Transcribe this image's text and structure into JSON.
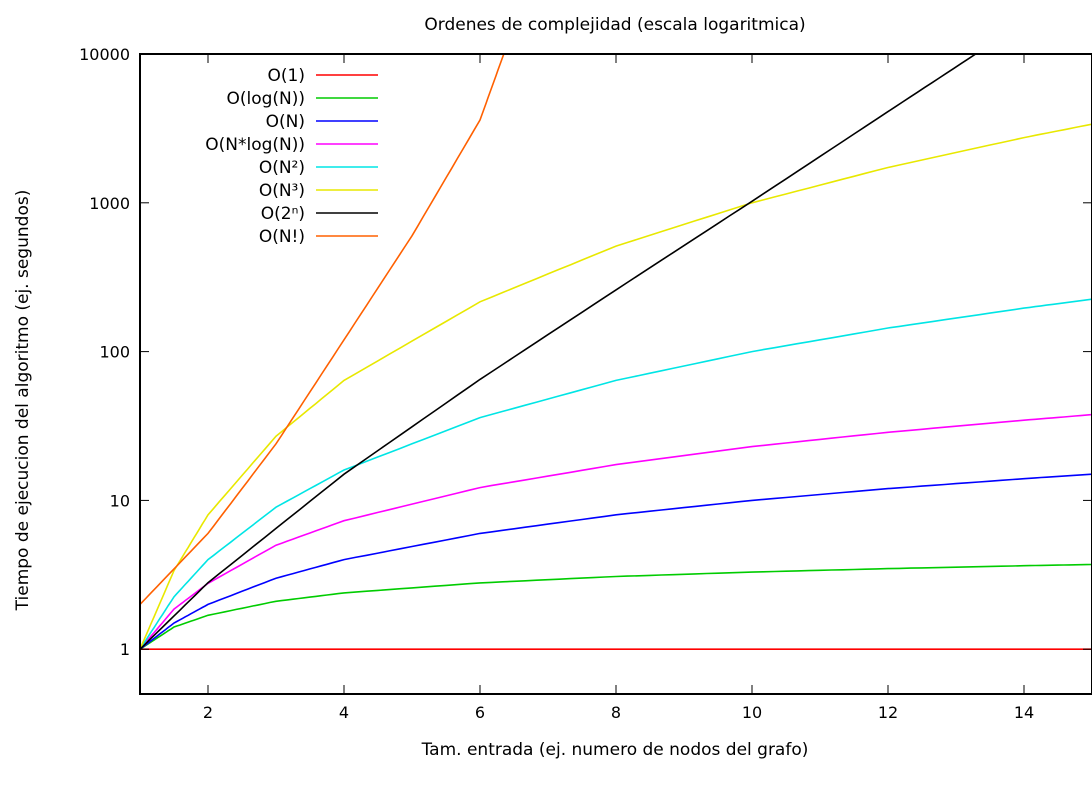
{
  "chart_data": {
    "type": "line",
    "title": "Ordenes de complejidad (escala logaritmica)",
    "xlabel": "Tam. entrada (ej. numero de nodos del grafo)",
    "ylabel": "Tiempo de ejecucion del algoritmo (ej. segundos)",
    "xlim": [
      1,
      15
    ],
    "ylim": [
      0.5,
      10000
    ],
    "yscale": "log",
    "x_ticks": [
      {
        "value": 2,
        "label": "2"
      },
      {
        "value": 4,
        "label": "4"
      },
      {
        "value": 6,
        "label": "6"
      },
      {
        "value": 8,
        "label": "8"
      },
      {
        "value": 10,
        "label": "10"
      },
      {
        "value": 12,
        "label": "12"
      },
      {
        "value": 14,
        "label": "14"
      }
    ],
    "y_ticks": [
      {
        "value": 1,
        "label": "1"
      },
      {
        "value": 10,
        "label": "10"
      },
      {
        "value": 100,
        "label": "100"
      },
      {
        "value": 1000,
        "label": "1000"
      },
      {
        "value": 10000,
        "label": "10000"
      }
    ],
    "grid": false,
    "legend_position": "top-left",
    "series": [
      {
        "name": "O(1)",
        "color": "#ff0000",
        "x": [
          1,
          15
        ],
        "y": [
          1,
          1
        ]
      },
      {
        "name": "O(log(N))",
        "color": "#00cc00",
        "x": [
          1,
          1.5,
          2,
          3,
          4,
          6,
          8,
          10,
          12,
          14,
          15
        ],
        "y": [
          1,
          1.41,
          1.69,
          2.1,
          2.39,
          2.79,
          3.08,
          3.3,
          3.48,
          3.64,
          3.71
        ]
      },
      {
        "name": "O(N)",
        "color": "#0000ff",
        "x": [
          1,
          1.5,
          2,
          3,
          4,
          6,
          8,
          10,
          12,
          14,
          15
        ],
        "y": [
          1,
          1.5,
          2,
          3,
          4,
          6,
          8,
          10,
          12,
          14,
          15
        ]
      },
      {
        "name": "O(N*log(N))",
        "color": "#ff00ff",
        "x": [
          1,
          1.5,
          2,
          3,
          4,
          6,
          8,
          10,
          12,
          14,
          15
        ],
        "y": [
          1,
          1.86,
          2.77,
          5.0,
          7.3,
          12.2,
          17.4,
          23.0,
          28.7,
          34.6,
          37.7
        ]
      },
      {
        "name": "O(N²)",
        "color": "#00e5e5",
        "x": [
          1,
          1.5,
          2,
          3,
          4,
          6,
          8,
          10,
          12,
          14,
          15
        ],
        "y": [
          1,
          2.25,
          4,
          9,
          16,
          36,
          64,
          100,
          144,
          196,
          225
        ]
      },
      {
        "name": "O(N³)",
        "color": "#e8e800",
        "x": [
          1,
          1.5,
          2,
          3,
          4,
          6,
          8,
          10,
          12,
          14,
          15
        ],
        "y": [
          1,
          3.375,
          8,
          27,
          64,
          216,
          512,
          1000,
          1728,
          2744,
          3375
        ]
      },
      {
        "name": "O(2ⁿ)",
        "color": "#000000",
        "x": [
          1,
          2,
          4,
          6,
          8,
          10,
          12,
          13.29
        ],
        "y": [
          1,
          2.8,
          15,
          65,
          260,
          1024,
          4100,
          10000
        ]
      },
      {
        "name": "O(N!)",
        "color": "#ff6000",
        "x": [
          1,
          2,
          3,
          4,
          5,
          6,
          6.35
        ],
        "y": [
          2,
          6,
          24,
          120,
          600,
          3600,
          10000
        ]
      }
    ]
  }
}
